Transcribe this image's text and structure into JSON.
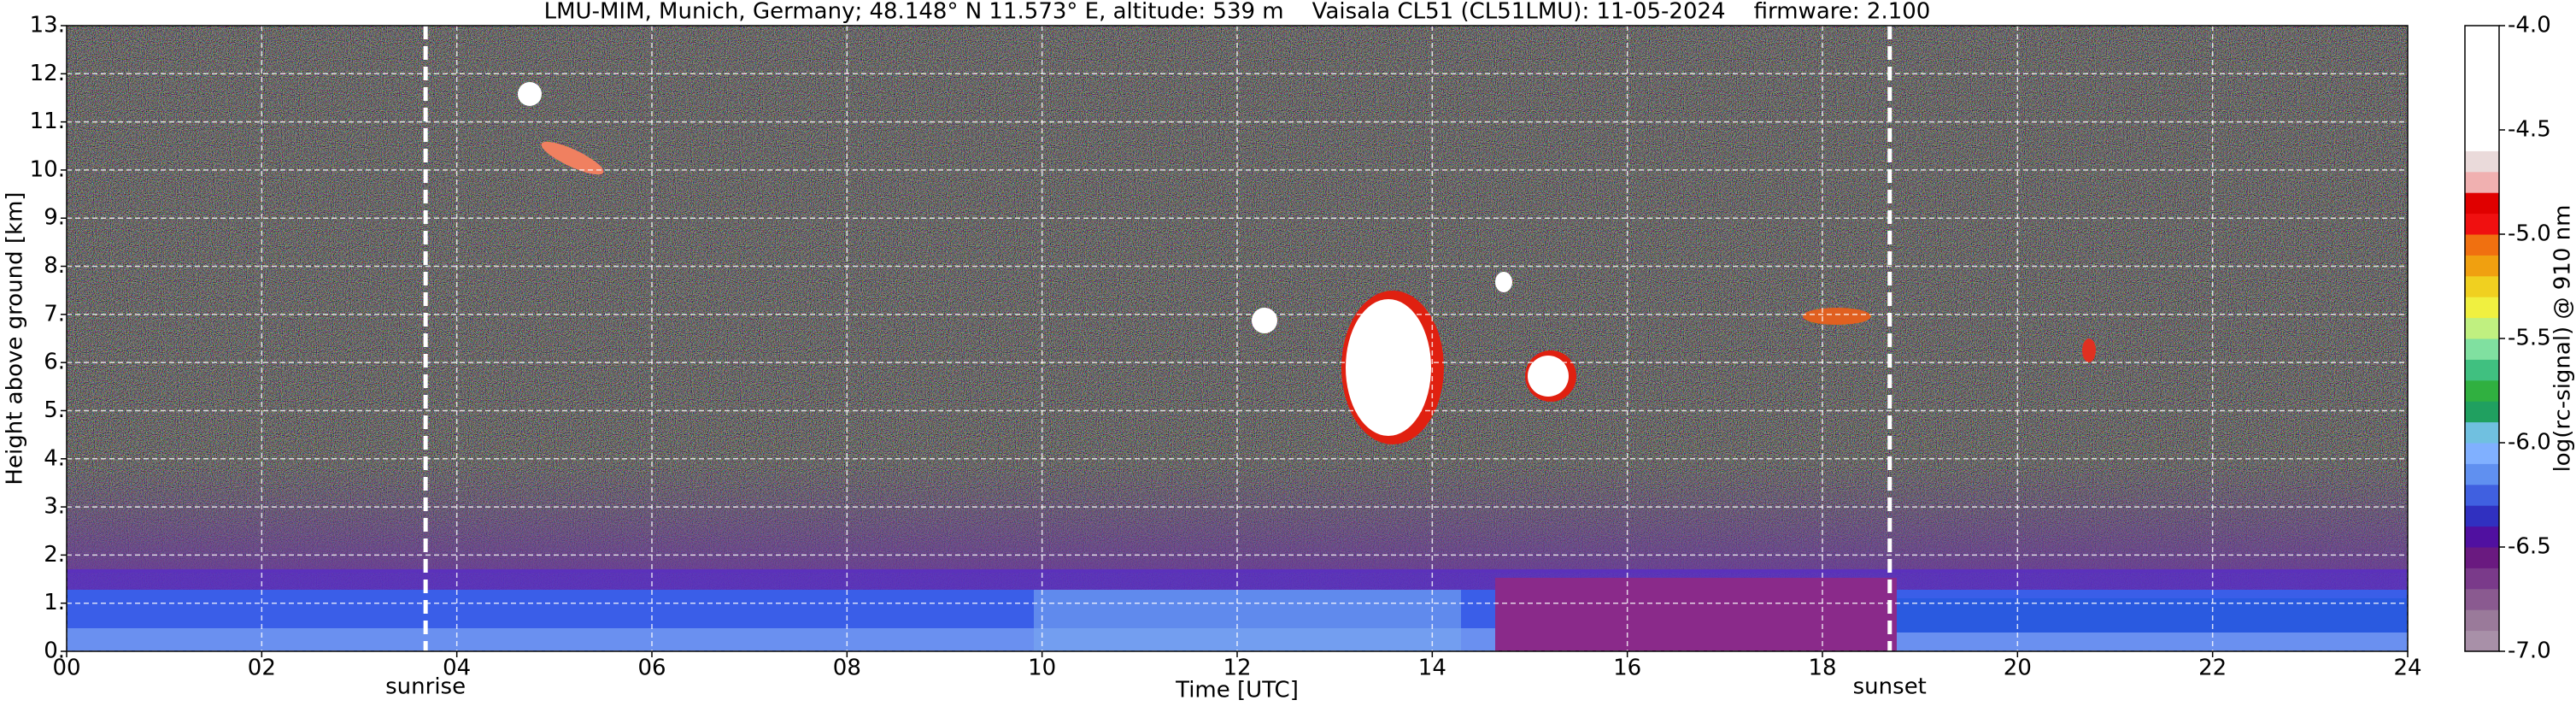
{
  "chart_data": {
    "type": "heatmap",
    "title": "LMU-MIM, Munich, Germany; 48.148° N 11.573° E, altitude: 539 m    Vaisala CL51 (CL51LMU): 11-05-2024    firmware: 2.100",
    "x_label": "Time [UTC]",
    "y_label": "Height above ground [km]",
    "xlim": [
      0,
      24
    ],
    "xticks": [
      {
        "value": 0,
        "label": "00"
      },
      {
        "value": 2,
        "label": "02"
      },
      {
        "value": 4,
        "label": "04"
      },
      {
        "value": 6,
        "label": "06"
      },
      {
        "value": 8,
        "label": "08"
      },
      {
        "value": 10,
        "label": "10"
      },
      {
        "value": 12,
        "label": "12"
      },
      14,
      16,
      18,
      20,
      22,
      24
    ],
    "ylim": [
      0,
      13
    ],
    "yticks": [
      {
        "value": 0,
        "label": "0."
      },
      {
        "value": 1,
        "label": "1."
      },
      {
        "value": 2,
        "label": "2."
      },
      {
        "value": 3,
        "label": "3."
      },
      {
        "value": 4,
        "label": "4."
      },
      {
        "value": 5,
        "label": "5."
      },
      {
        "value": 6,
        "label": "6."
      },
      {
        "value": 7,
        "label": "7."
      },
      {
        "value": 8,
        "label": "8."
      },
      {
        "value": 9,
        "label": "9."
      },
      {
        "value": 10,
        "label": "10."
      },
      {
        "value": 11,
        "label": "11."
      },
      {
        "value": 12,
        "label": "12."
      },
      {
        "value": 13,
        "label": "13."
      }
    ],
    "grid": true,
    "annotations": [
      {
        "text": "sunrise",
        "x": 3.68
      },
      {
        "text": "sunset",
        "x": 18.69
      }
    ],
    "colorbar": {
      "label": "log(rc-signal) @ 910 nm",
      "lim": [
        -7.0,
        -4.0
      ],
      "ticks": [
        {
          "value": -4.0,
          "label": "-4.0"
        },
        {
          "value": -4.5,
          "label": "-4.5"
        },
        {
          "value": -5.0,
          "label": "-5.0"
        },
        {
          "value": -5.5,
          "label": "-5.5"
        },
        {
          "value": -6.0,
          "label": "-6.0"
        },
        {
          "value": -6.5,
          "label": "-6.5"
        },
        {
          "value": -7.0,
          "label": "-7.0"
        }
      ],
      "colors": [
        "#a890a8",
        "#9a7a9a",
        "#8a5a90",
        "#7a3a8a",
        "#6a1a80",
        "#5010a0",
        "#3030c0",
        "#4060e0",
        "#6090f0",
        "#80b0ff",
        "#70c0e0",
        "#20a060",
        "#30b040",
        "#40c080",
        "#80e0a0",
        "#c0f080",
        "#f0f040",
        "#f0d020",
        "#f0a010",
        "#f07010",
        "#f01010",
        "#e00000",
        "#f0b0b0",
        "#eadada",
        "#ffffff",
        "#ffffff",
        "#ffffff",
        "#ffffff",
        "#ffffff",
        "#ffffff"
      ]
    }
  }
}
